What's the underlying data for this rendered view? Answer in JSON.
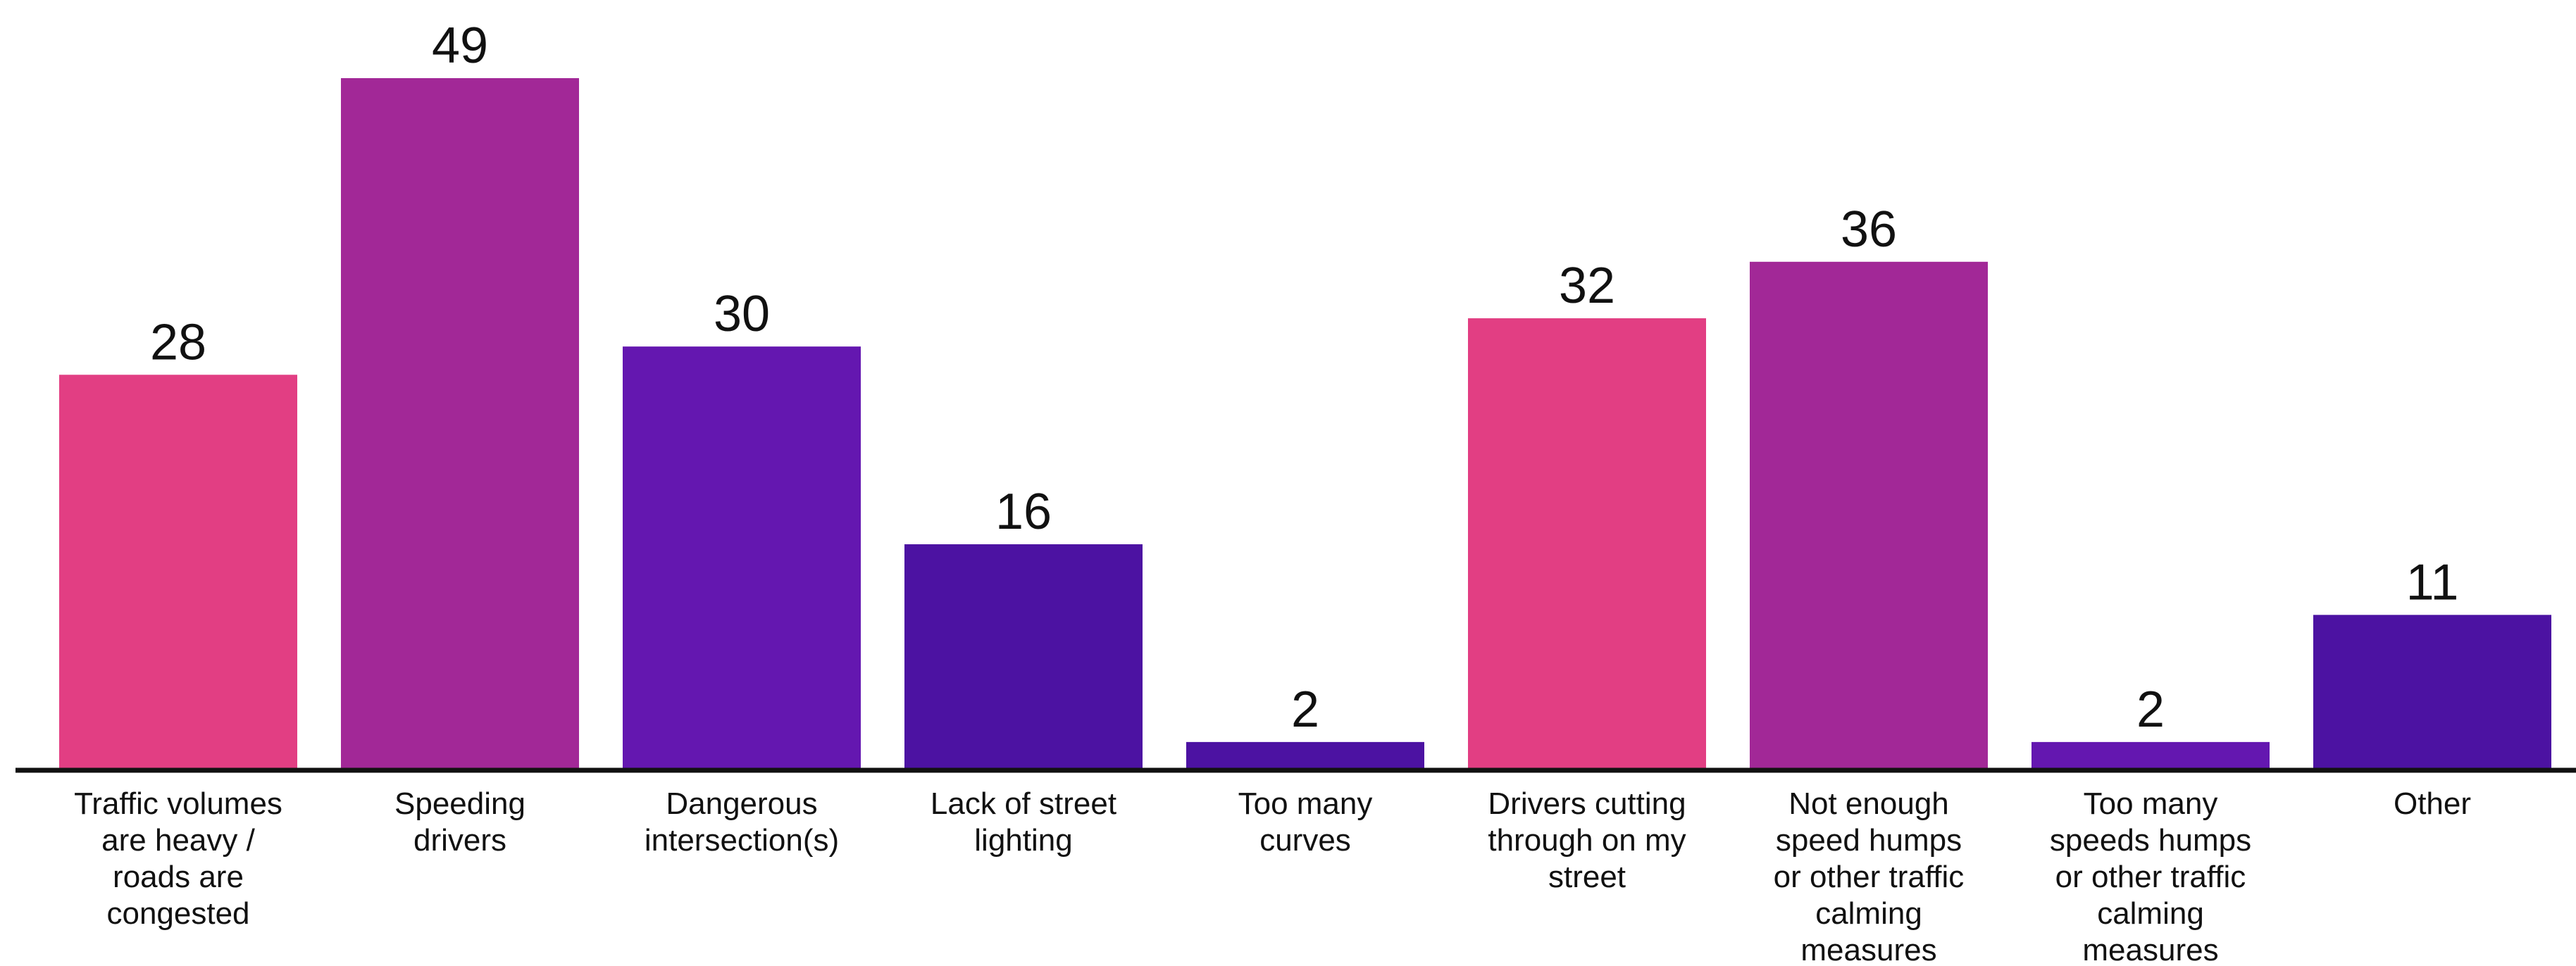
{
  "chart_data": {
    "type": "bar",
    "title": "",
    "xlabel": "",
    "ylabel": "",
    "ylim": [
      0,
      49
    ],
    "grid": false,
    "categories": [
      [
        "Traffic volumes",
        "are heavy /",
        "roads are",
        "congested"
      ],
      [
        "Speeding",
        "drivers"
      ],
      [
        "Dangerous",
        "intersection(s)"
      ],
      [
        "Lack of street",
        "lighting"
      ],
      [
        "Too many",
        "curves"
      ],
      [
        "Drivers cutting",
        "through on my",
        "street"
      ],
      [
        "Not enough",
        "speed humps",
        "or other traffic",
        "calming",
        "measures"
      ],
      [
        "Too many",
        "speeds humps",
        "or other traffic",
        "calming",
        "measures"
      ],
      [
        "Other"
      ]
    ],
    "values": [
      28,
      49,
      30,
      16,
      2,
      32,
      36,
      2,
      11
    ],
    "value_labels": [
      "28",
      "49",
      "30",
      "16",
      "2",
      "32",
      "36",
      "2",
      "11"
    ],
    "bar_colors": [
      "#e23e83",
      "#a22897",
      "#6417b0",
      "#4c12a2",
      "#4c12a2",
      "#e23e83",
      "#a22897",
      "#6417b0",
      "#4c12a2"
    ],
    "axis_color": "#111111"
  }
}
